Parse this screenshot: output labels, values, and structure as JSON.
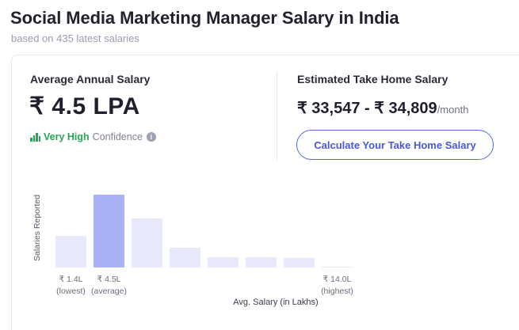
{
  "header": {
    "title": "Social Media Marketing Manager Salary in India",
    "subtitle": "based on 435 latest salaries"
  },
  "average": {
    "label": "Average Annual Salary",
    "value": "₹ 4.5 LPA",
    "confidence_strong": "Very High",
    "confidence_rest": "Confidence",
    "info_icon": "info-icon"
  },
  "take_home": {
    "label": "Estimated Take Home Salary",
    "value": "₹ 33,547 - ₹ 34,809",
    "unit": "/month",
    "button_label": "Calculate Your Take Home Salary"
  },
  "colors": {
    "accent": "#5a67e0",
    "highlight_bar": "#aab2f5",
    "bar": "#e8eafb",
    "confidence": "#27a35a"
  },
  "chart_data": {
    "type": "bar",
    "ylabel": "Salaries Reported",
    "xlabel": "Avg. Salary (in Lakhs)",
    "values": [
      40,
      92,
      62,
      25,
      13,
      13,
      12,
      1
    ],
    "highlight_index": 1,
    "tick_labels": [
      {
        "index": 0,
        "value": "₹ 1.4L",
        "note": "(lowest)"
      },
      {
        "index": 1,
        "value": "₹ 4.5L",
        "note": "(average)"
      },
      {
        "index": 7,
        "value": "₹ 14.0L",
        "note": "(highest)"
      }
    ]
  }
}
